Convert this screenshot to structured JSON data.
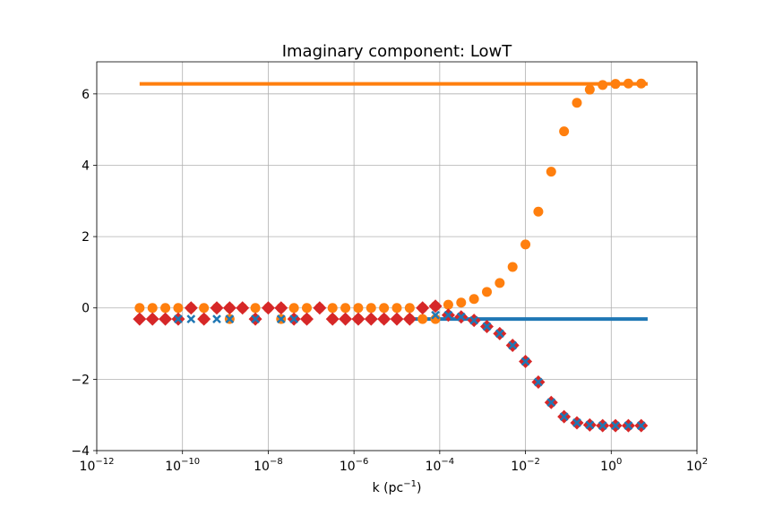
{
  "chart_data": {
    "type": "scatter",
    "title": "Imaginary component: LowT",
    "xlabel": "k (pc",
    "xlabel_sup": "−1",
    "xlabel_close": ")",
    "ylabel": "",
    "xscale": "log",
    "xlim_log10": [
      -12,
      2
    ],
    "ylim": [
      -4,
      6.9
    ],
    "grid": true,
    "x_tick_exponents": [
      -12,
      -10,
      -8,
      -6,
      -4,
      -2,
      0,
      2
    ],
    "x_tick_base": "10",
    "y_ticks": [
      -4,
      -2,
      0,
      2,
      4,
      6
    ],
    "y_tick_labels": [
      "−4",
      "−2",
      "0",
      "2",
      "4",
      "6"
    ],
    "colors": {
      "blue": "#1f77b4",
      "orange": "#ff7f0e",
      "red": "#d62728"
    },
    "series": [
      {
        "marker": "line",
        "color": "orange",
        "x_log10": [
          -11,
          0.85
        ],
        "y": [
          6.28,
          6.28
        ]
      },
      {
        "marker": "line",
        "color": "blue",
        "x_log10": [
          -4.6,
          0.85
        ],
        "y": [
          -0.31,
          -0.31
        ]
      },
      {
        "marker": "circle",
        "color": "orange",
        "x_log10": [
          -11.0,
          -10.7,
          -10.4,
          -10.1,
          -9.8,
          -9.5,
          -9.2,
          -8.9,
          -8.6,
          -8.3,
          -8.0,
          -7.7,
          -7.4,
          -7.1,
          -6.8,
          -6.5,
          -6.2,
          -5.9,
          -5.6,
          -5.3,
          -5.0,
          -4.7,
          -4.4,
          -4.1,
          -3.8,
          -3.5,
          -3.2,
          -2.9,
          -2.6,
          -2.3,
          -2.0,
          -1.7,
          -1.4,
          -1.1,
          -0.8,
          -0.5,
          -0.2,
          0.1,
          0.4,
          0.7
        ],
        "y": [
          0.0,
          0.0,
          0.0,
          0.0,
          0.0,
          0.0,
          0.0,
          0.0,
          0.0,
          0.0,
          0.0,
          0.0,
          0.0,
          0.0,
          0.0,
          0.0,
          0.0,
          0.0,
          0.0,
          0.0,
          0.0,
          0.0,
          0.0,
          0.05,
          0.09,
          0.15,
          0.25,
          0.45,
          0.7,
          1.15,
          1.78,
          2.7,
          3.82,
          4.95,
          5.75,
          6.12,
          6.25,
          6.28,
          6.29,
          6.29
        ]
      },
      {
        "marker": "circle",
        "color": "orange",
        "x_log10": [
          -10.1,
          -9.5,
          -8.9,
          -8.3,
          -7.7,
          -7.1,
          -6.5,
          -5.9,
          -5.3,
          -4.7,
          -4.4,
          -4.1
        ],
        "y": [
          -0.31,
          -0.31,
          -0.31,
          -0.31,
          -0.31,
          -0.31,
          -0.31,
          -0.31,
          -0.31,
          -0.31,
          -0.31,
          -0.31
        ]
      },
      {
        "marker": "diamond",
        "color": "red",
        "x_log10": [
          -11.0,
          -10.7,
          -10.4,
          -10.1,
          -9.8,
          -9.5,
          -9.2,
          -8.9,
          -8.6,
          -8.3,
          -8.0,
          -7.7,
          -7.4,
          -7.1,
          -6.8,
          -6.5,
          -6.2,
          -5.9,
          -5.6,
          -5.3,
          -5.0,
          -4.7,
          -4.4,
          -4.1,
          -3.8,
          -3.5,
          -3.2,
          -2.9,
          -2.6,
          -2.3,
          -2.0,
          -1.7,
          -1.4,
          -1.1,
          -0.8,
          -0.5,
          -0.2,
          0.1,
          0.4,
          0.7
        ],
        "y": [
          -0.31,
          -0.31,
          -0.31,
          -0.31,
          0.0,
          -0.31,
          0.0,
          0.0,
          0.0,
          -0.31,
          0.0,
          0.0,
          -0.31,
          -0.31,
          0.0,
          -0.31,
          -0.31,
          -0.31,
          -0.31,
          -0.31,
          -0.31,
          -0.31,
          0.0,
          0.05,
          -0.2,
          -0.25,
          -0.35,
          -0.52,
          -0.72,
          -1.05,
          -1.5,
          -2.08,
          -2.65,
          -3.05,
          -3.22,
          -3.28,
          -3.3,
          -3.3,
          -3.3,
          -3.3
        ]
      },
      {
        "marker": "x",
        "color": "blue",
        "x_log10": [
          -10.1,
          -9.8,
          -9.2,
          -8.9,
          -8.3,
          -7.7,
          -7.4,
          -4.1,
          -3.8,
          -3.5,
          -3.2,
          -2.9,
          -2.6,
          -2.3,
          -2.0,
          -1.7,
          -1.4,
          -1.1,
          -0.8,
          -0.5,
          -0.2,
          0.1,
          0.4,
          0.7
        ],
        "y": [
          -0.31,
          -0.31,
          -0.31,
          -0.31,
          -0.31,
          -0.31,
          -0.31,
          -0.2,
          -0.2,
          -0.25,
          -0.35,
          -0.52,
          -0.72,
          -1.05,
          -1.5,
          -2.08,
          -2.65,
          -3.05,
          -3.22,
          -3.28,
          -3.3,
          -3.3,
          -3.3,
          -3.3
        ]
      }
    ]
  }
}
